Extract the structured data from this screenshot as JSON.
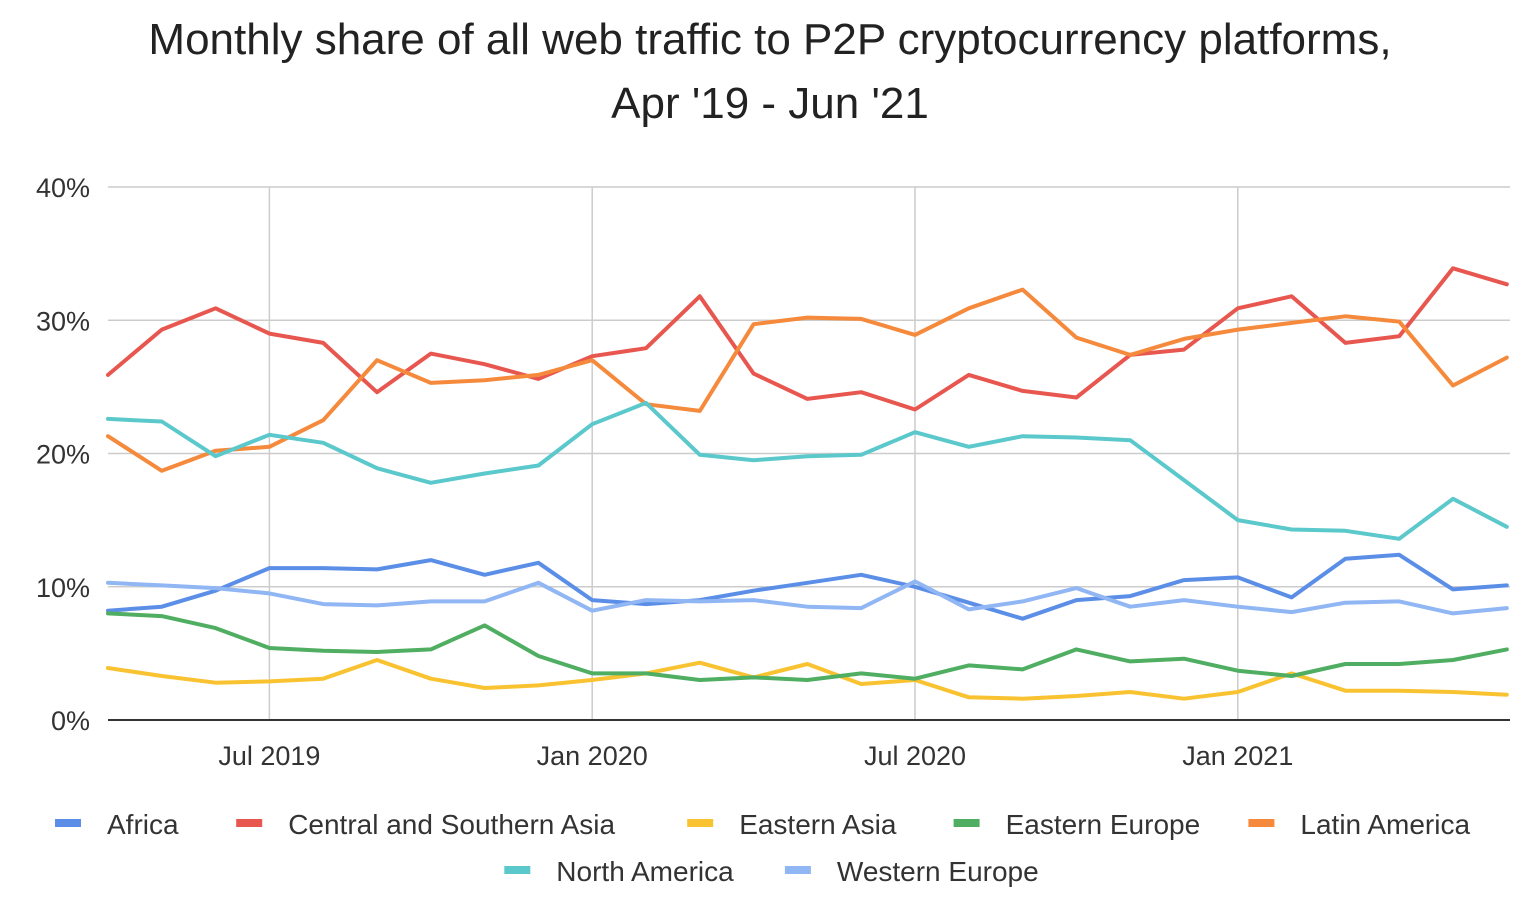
{
  "chart_data": {
    "type": "line",
    "title_lines": [
      "Monthly share of all web traffic to P2P cryptocurrency platforms,",
      "Apr '19 - Jun '21"
    ],
    "xlabel": "",
    "ylabel": "",
    "ylim": [
      0,
      40
    ],
    "yticks": [
      0,
      10,
      20,
      30,
      40
    ],
    "ytick_labels": [
      "0%",
      "10%",
      "20%",
      "30%",
      "40%"
    ],
    "x": [
      "Apr 2019",
      "May 2019",
      "Jun 2019",
      "Jul 2019",
      "Aug 2019",
      "Sep 2019",
      "Oct 2019",
      "Nov 2019",
      "Dec 2019",
      "Jan 2020",
      "Feb 2020",
      "Mar 2020",
      "Apr 2020",
      "May 2020",
      "Jun 2020",
      "Jul 2020",
      "Aug 2020",
      "Sep 2020",
      "Oct 2020",
      "Nov 2020",
      "Dec 2020",
      "Jan 2021",
      "Feb 2021",
      "Mar 2021",
      "Apr 2021",
      "May 2021",
      "Jun 2021"
    ],
    "xticks": [
      {
        "index": 3,
        "label": "Jul 2019"
      },
      {
        "index": 9,
        "label": "Jan 2020"
      },
      {
        "index": 15,
        "label": "Jul 2020"
      },
      {
        "index": 21,
        "label": "Jan 2021"
      }
    ],
    "grid": true,
    "legend_position": "bottom",
    "series": [
      {
        "name": "Africa",
        "color": "#5b8ee6",
        "values": [
          8.2,
          8.5,
          9.7,
          11.4,
          11.4,
          11.3,
          12.0,
          10.9,
          11.8,
          9.0,
          8.7,
          9.0,
          9.7,
          10.3,
          10.9,
          10.0,
          8.8,
          7.6,
          9.0,
          9.3,
          10.5,
          10.7,
          9.2,
          12.1,
          12.4,
          9.8,
          10.1
        ]
      },
      {
        "name": "Central and Southern Asia",
        "color": "#e8574f",
        "values": [
          25.9,
          29.3,
          30.9,
          29.0,
          28.3,
          24.6,
          27.5,
          26.7,
          25.6,
          27.3,
          27.9,
          31.8,
          26.0,
          24.1,
          24.6,
          23.3,
          25.9,
          24.7,
          24.2,
          27.4,
          27.8,
          30.9,
          31.8,
          28.3,
          28.8,
          33.9,
          32.7
        ]
      },
      {
        "name": "Eastern Asia",
        "color": "#f9c230",
        "values": [
          3.9,
          3.3,
          2.8,
          2.9,
          3.1,
          4.5,
          3.1,
          2.4,
          2.6,
          3.0,
          3.5,
          4.3,
          3.2,
          4.2,
          2.7,
          3.0,
          1.7,
          1.6,
          1.8,
          2.1,
          1.6,
          2.1,
          3.5,
          2.2,
          2.2,
          2.1,
          1.9
        ]
      },
      {
        "name": "Eastern Europe",
        "color": "#4fae62",
        "values": [
          8.0,
          7.8,
          6.9,
          5.4,
          5.2,
          5.1,
          5.3,
          7.1,
          4.8,
          3.5,
          3.5,
          3.0,
          3.2,
          3.0,
          3.5,
          3.1,
          4.1,
          3.8,
          5.3,
          4.4,
          4.6,
          3.7,
          3.3,
          4.2,
          4.2,
          4.5,
          5.3
        ]
      },
      {
        "name": "Latin America",
        "color": "#f58a3c",
        "values": [
          21.3,
          18.7,
          20.2,
          20.5,
          22.5,
          27.0,
          25.3,
          25.5,
          25.9,
          27.0,
          23.7,
          23.2,
          29.7,
          30.2,
          30.1,
          28.9,
          30.9,
          32.3,
          28.7,
          27.4,
          28.6,
          29.3,
          29.8,
          30.3,
          29.9,
          25.1,
          27.2
        ]
      },
      {
        "name": "North America",
        "color": "#5bc8cc",
        "values": [
          22.6,
          22.4,
          19.8,
          21.4,
          20.8,
          18.9,
          17.8,
          18.5,
          19.1,
          22.2,
          23.8,
          19.9,
          19.5,
          19.8,
          19.9,
          21.6,
          20.5,
          21.3,
          21.2,
          21.0,
          18.0,
          15.0,
          14.3,
          14.2,
          13.6,
          16.6,
          14.5
        ]
      },
      {
        "name": "Western Europe",
        "color": "#90b6f4",
        "values": [
          10.3,
          10.1,
          9.9,
          9.5,
          8.7,
          8.6,
          8.9,
          8.9,
          10.3,
          8.2,
          9.0,
          8.9,
          9.0,
          8.5,
          8.4,
          10.4,
          8.3,
          8.9,
          9.9,
          8.5,
          9.0,
          8.5,
          8.1,
          8.8,
          8.9,
          8.0,
          8.4
        ]
      }
    ]
  }
}
